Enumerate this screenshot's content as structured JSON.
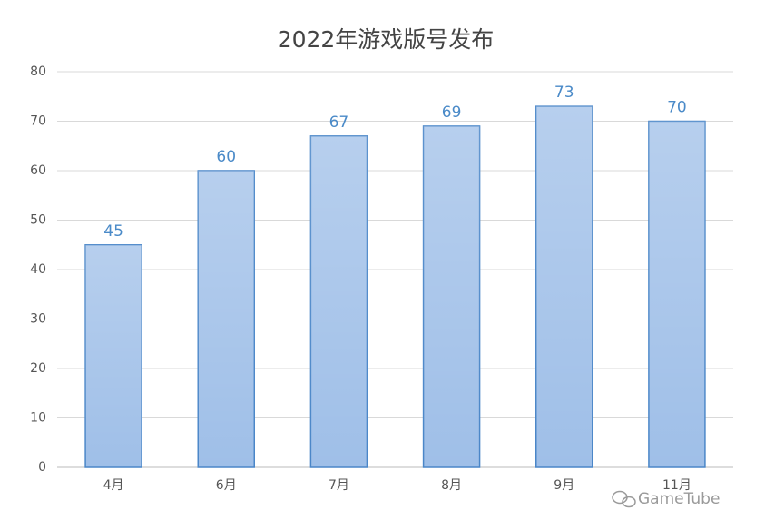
{
  "chart_data": {
    "type": "bar",
    "title": "2022年游戏版号发布",
    "categories": [
      "4月",
      "6月",
      "7月",
      "8月",
      "9月",
      "11月"
    ],
    "values": [
      45,
      60,
      67,
      69,
      73,
      70
    ],
    "color": "#9fbfe8",
    "edgecolor": "#4a86c8",
    "value_label_color": "#4a8ac8",
    "ylim": [
      0,
      80
    ],
    "yticks": [
      0,
      10,
      20,
      30,
      40,
      50,
      60,
      70,
      80
    ],
    "grid": true,
    "watermark": "GameTube"
  }
}
